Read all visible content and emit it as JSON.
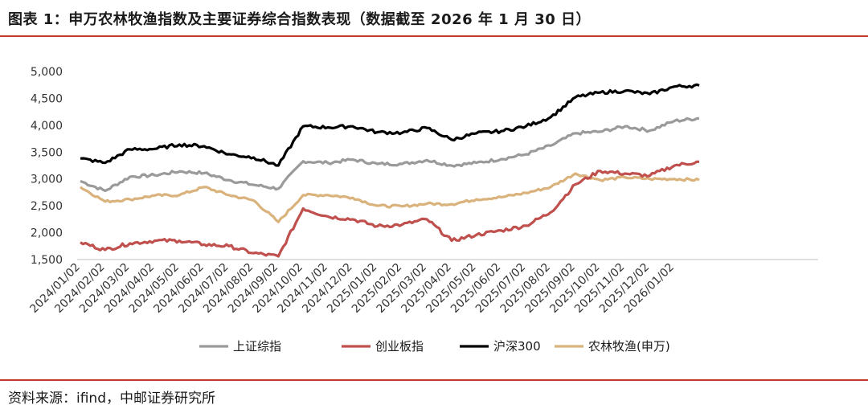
{
  "header": {
    "title": "图表 1：申万农林牧渔指数及主要证券综合指数表现（数据截至 2026 年 1 月 30 日）"
  },
  "source": "资料来源：ifind，中邮证券研究所",
  "colors": {
    "accent": "#c0392b",
    "shangzheng": "#9a9a9a",
    "chuangye": "#c0504d",
    "hushen": "#000000",
    "nonglin": "#d9b27c"
  },
  "chart_data": {
    "type": "line",
    "title": "",
    "xlabel": "",
    "ylabel": "",
    "ylim": [
      1500,
      5000
    ],
    "yticks": [
      "1,500",
      "2,000",
      "2,500",
      "3,000",
      "3,500",
      "4,000",
      "4,500",
      "5,000"
    ],
    "ytick_values": [
      1500,
      2000,
      2500,
      3000,
      3500,
      4000,
      4500,
      5000
    ],
    "x": [
      "2024/01/02",
      "2024/02/02",
      "2024/03/02",
      "2024/04/02",
      "2024/05/02",
      "2024/06/02",
      "2024/07/02",
      "2024/08/02",
      "2024/09/02",
      "2024/10/02",
      "2024/11/02",
      "2024/12/02",
      "2025/01/02",
      "2025/02/02",
      "2025/03/02",
      "2025/04/02",
      "2025/05/02",
      "2025/06/02",
      "2025/07/02",
      "2025/08/02",
      "2025/09/02",
      "2025/10/02",
      "2025/11/02",
      "2025/12/02",
      "2026/01/02",
      "2026/01/30"
    ],
    "xtick_labels": [
      "2024/01/02",
      "2024/02/02",
      "2024/03/02",
      "2024/04/02",
      "2024/05/02",
      "2024/06/02",
      "2024/07/02",
      "2024/08/02",
      "2024/09/02",
      "2024/10/02",
      "2024/11/02",
      "2024/12/02",
      "2025/01/02",
      "2025/02/02",
      "2025/03/02",
      "2025/04/02",
      "2025/05/02",
      "2025/06/02",
      "2025/07/02",
      "2025/08/02",
      "2025/09/02",
      "2025/10/02",
      "2025/11/02",
      "2025/12/02",
      "2026/01/02"
    ],
    "grid": false,
    "legend_position": "bottom",
    "series": [
      {
        "name": "上证综指",
        "color": "#9a9a9a",
        "values": [
          2960,
          2780,
          3040,
          3070,
          3140,
          3110,
          2980,
          2890,
          2820,
          3330,
          3300,
          3360,
          3280,
          3280,
          3350,
          3250,
          3300,
          3370,
          3460,
          3620,
          3850,
          3880,
          3980,
          3900,
          4080,
          4130
        ]
      },
      {
        "name": "创业板指",
        "color": "#c0504d",
        "values": [
          1820,
          1680,
          1800,
          1850,
          1850,
          1780,
          1750,
          1620,
          1560,
          2450,
          2300,
          2250,
          2120,
          2150,
          2250,
          1850,
          1960,
          2040,
          2130,
          2380,
          2900,
          3150,
          3100,
          3060,
          3250,
          3320
        ]
      },
      {
        "name": "沪深300",
        "color": "#000000",
        "values": [
          3380,
          3300,
          3550,
          3560,
          3640,
          3610,
          3460,
          3400,
          3250,
          3980,
          3960,
          3980,
          3870,
          3860,
          3950,
          3730,
          3850,
          3890,
          3980,
          4150,
          4520,
          4610,
          4640,
          4580,
          4720,
          4740
        ]
      },
      {
        "name": "农林牧渔(申万)",
        "color": "#d9b27c",
        "values": [
          2850,
          2580,
          2620,
          2690,
          2700,
          2850,
          2700,
          2600,
          2200,
          2700,
          2700,
          2650,
          2500,
          2490,
          2540,
          2530,
          2620,
          2660,
          2740,
          2850,
          3100,
          2980,
          3030,
          3000,
          3000,
          2980
        ]
      }
    ]
  }
}
